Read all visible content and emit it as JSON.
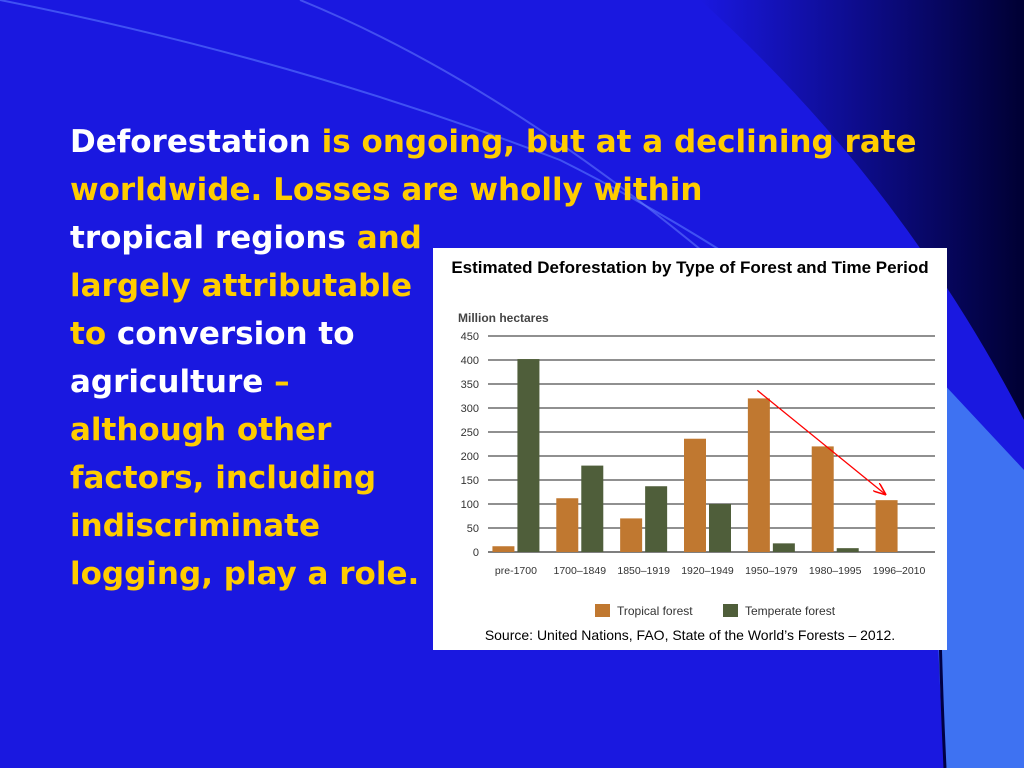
{
  "slide": {
    "headline_white": "Deforestation",
    "headline_yellow": " is ongoing, but at a declining rate worldwide.  Losses are wholly within",
    "line_white_1": "tropical regions",
    "line_yellow_1": "and largely attributable to",
    "line_white_2": "conversion to agriculture",
    "dash": " –",
    "line_yellow_2": "although other factors, including indiscriminate logging, play a role.",
    "colors": {
      "background": "#1a18e0",
      "white_text": "#ffffff",
      "yellow_text": "#ffcc00"
    }
  },
  "chart_data": {
    "type": "bar",
    "title": "Estimated Deforestation by Type of Forest and Time Period",
    "ylabel": "Million hectares",
    "ylim": [
      0,
      450
    ],
    "yticks": [
      0,
      50,
      100,
      150,
      200,
      250,
      300,
      350,
      400,
      450
    ],
    "categories": [
      "pre-1700",
      "1700–1849",
      "1850–1919",
      "1920–1949",
      "1950–1979",
      "1980–1995",
      "1996–2010"
    ],
    "series": [
      {
        "name": "Tropical forest",
        "color": "#c07830",
        "values": [
          12,
          112,
          70,
          236,
          320,
          220,
          108
        ]
      },
      {
        "name": "Temperate forest",
        "color": "#4f5e3a",
        "values": [
          402,
          180,
          137,
          100,
          18,
          8,
          0
        ]
      }
    ],
    "grid": true,
    "legend": "bottom",
    "trend_arrow": {
      "color": "#ff0000",
      "from_category": "1950–1979",
      "to_category": "1996–2010"
    },
    "source": "Source: United Nations, FAO, State of the World’s Forests – 2012."
  }
}
